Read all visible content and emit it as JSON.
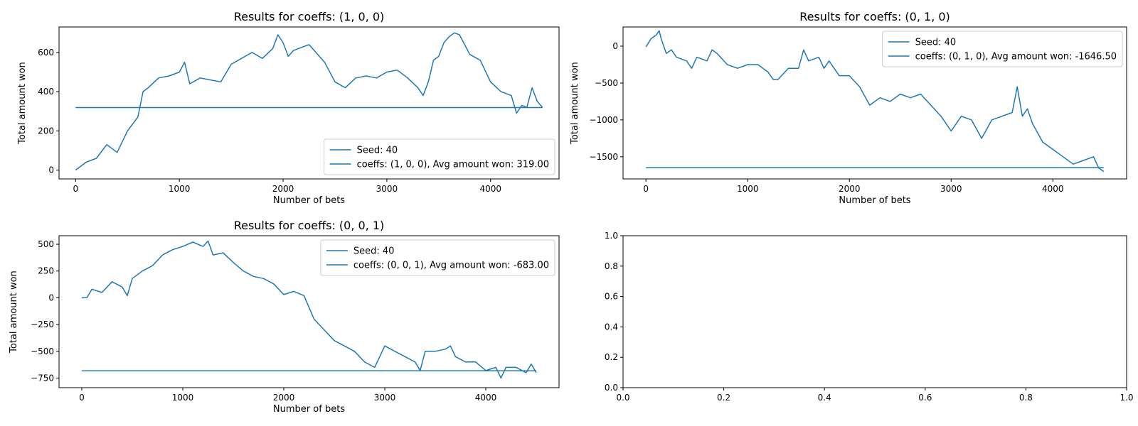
{
  "chart_data": [
    {
      "type": "line",
      "title": "Results for coeffs: (1, 0, 0)",
      "xlabel": "Number of bets",
      "ylabel": "Total amount won",
      "xlim": [
        -160,
        4660
      ],
      "ylim": [
        -45,
        730
      ],
      "xticks": [
        0,
        1000,
        2000,
        3000,
        4000
      ],
      "yticks": [
        0,
        200,
        400,
        600
      ],
      "legend_position": "lower right",
      "series": [
        {
          "name": "Seed: 40",
          "color": "#1f77b4",
          "x": [
            0,
            100,
            200,
            300,
            400,
            500,
            600,
            650,
            700,
            800,
            900,
            1000,
            1050,
            1100,
            1200,
            1300,
            1400,
            1500,
            1600,
            1700,
            1800,
            1900,
            1950,
            2000,
            2050,
            2100,
            2200,
            2250,
            2300,
            2400,
            2500,
            2600,
            2700,
            2800,
            2900,
            3000,
            3100,
            3200,
            3300,
            3350,
            3400,
            3450,
            3500,
            3550,
            3600,
            3650,
            3700,
            3750,
            3800,
            3900,
            4000,
            4100,
            4200,
            4250,
            4300,
            4350,
            4400,
            4450,
            4500
          ],
          "y": [
            0,
            40,
            60,
            130,
            90,
            200,
            270,
            400,
            420,
            470,
            480,
            500,
            550,
            440,
            470,
            460,
            450,
            540,
            570,
            600,
            570,
            620,
            690,
            650,
            580,
            610,
            630,
            640,
            610,
            550,
            450,
            420,
            470,
            480,
            470,
            500,
            510,
            470,
            420,
            380,
            450,
            560,
            580,
            650,
            680,
            700,
            690,
            640,
            590,
            560,
            450,
            400,
            380,
            290,
            330,
            320,
            420,
            350,
            320
          ]
        },
        {
          "name": "coeffs: (1, 0, 0), Avg amount won: 319.00",
          "color": "#1f77b4",
          "x": [
            0,
            4500
          ],
          "y": [
            319,
            319
          ]
        }
      ]
    },
    {
      "type": "line",
      "title": "Results for coeffs: (0, 1, 0)",
      "xlabel": "Number of bets",
      "ylabel": "Total amount won",
      "xlim": [
        -225,
        4725
      ],
      "ylim": [
        -1800,
        260
      ],
      "xticks": [
        0,
        1000,
        2000,
        3000,
        4000
      ],
      "yticks": [
        0,
        -500,
        -1000,
        -1500
      ],
      "legend_position": "upper right",
      "series": [
        {
          "name": "Seed: 40",
          "color": "#1f77b4",
          "x": [
            0,
            50,
            100,
            130,
            150,
            200,
            250,
            300,
            400,
            450,
            500,
            600,
            650,
            700,
            800,
            900,
            1000,
            1100,
            1200,
            1250,
            1300,
            1400,
            1500,
            1550,
            1600,
            1700,
            1750,
            1800,
            1900,
            2000,
            2100,
            2200,
            2300,
            2400,
            2500,
            2600,
            2700,
            2800,
            2900,
            3000,
            3100,
            3200,
            3300,
            3400,
            3500,
            3600,
            3650,
            3700,
            3750,
            3800,
            3900,
            4000,
            4100,
            4200,
            4300,
            4400,
            4450,
            4500
          ],
          "y": [
            -10,
            100,
            150,
            210,
            100,
            -100,
            -50,
            -150,
            -200,
            -300,
            -150,
            -200,
            -50,
            -100,
            -250,
            -300,
            -250,
            -250,
            -350,
            -450,
            -450,
            -300,
            -300,
            -50,
            -200,
            -150,
            -300,
            -200,
            -400,
            -400,
            -550,
            -800,
            -700,
            -750,
            -650,
            -700,
            -650,
            -800,
            -950,
            -1150,
            -950,
            -1000,
            -1250,
            -1000,
            -950,
            -900,
            -550,
            -950,
            -850,
            -1050,
            -1300,
            -1400,
            -1500,
            -1600,
            -1550,
            -1500,
            -1650,
            -1700
          ]
        },
        {
          "name": "coeffs: (0, 1, 0), Avg amount won: -1646.50",
          "color": "#1f77b4",
          "x": [
            0,
            4500
          ],
          "y": [
            -1646.5,
            -1646.5
          ]
        }
      ]
    },
    {
      "type": "line",
      "title": "Results for coeffs: (0, 0, 1)",
      "xlabel": "Number of bets",
      "ylabel": "Total amount won",
      "xlim": [
        -225,
        4725
      ],
      "ylim": [
        -840,
        580
      ],
      "xticks": [
        0,
        1000,
        2000,
        3000,
        4000
      ],
      "yticks": [
        500,
        250,
        0,
        -250,
        -500,
        -750
      ],
      "legend_position": "upper right",
      "series": [
        {
          "name": "Seed: 40",
          "color": "#1f77b4",
          "x": [
            0,
            50,
            100,
            200,
            300,
            400,
            450,
            500,
            600,
            700,
            800,
            900,
            1000,
            1100,
            1200,
            1250,
            1300,
            1400,
            1500,
            1600,
            1700,
            1800,
            1900,
            2000,
            2100,
            2200,
            2300,
            2400,
            2500,
            2600,
            2700,
            2800,
            2900,
            3000,
            3100,
            3200,
            3300,
            3350,
            3400,
            3500,
            3600,
            3650,
            3700,
            3800,
            3900,
            4000,
            4100,
            4150,
            4200,
            4300,
            4400,
            4450,
            4500
          ],
          "y": [
            0,
            0,
            80,
            50,
            150,
            100,
            20,
            180,
            250,
            300,
            400,
            450,
            480,
            520,
            480,
            530,
            400,
            420,
            330,
            250,
            200,
            180,
            130,
            30,
            60,
            20,
            -200,
            -300,
            -400,
            -450,
            -500,
            -600,
            -650,
            -450,
            -500,
            -550,
            -600,
            -680,
            -500,
            -500,
            -480,
            -450,
            -550,
            -600,
            -600,
            -680,
            -650,
            -750,
            -650,
            -650,
            -700,
            -620,
            -700
          ]
        },
        {
          "name": "coeffs: (0, 0, 1), Avg amount won: -683.00",
          "color": "#1f77b4",
          "x": [
            0,
            4500
          ],
          "y": [
            -683,
            -683
          ]
        }
      ]
    },
    {
      "type": "line",
      "title": "",
      "xlabel": "",
      "ylabel": "",
      "xlim": [
        0,
        1
      ],
      "ylim": [
        0,
        1
      ],
      "xticks": [
        0.0,
        0.2,
        0.4,
        0.6,
        0.8,
        1.0
      ],
      "yticks": [
        0.0,
        0.2,
        0.4,
        0.6,
        0.8,
        1.0
      ],
      "tick_format": "0.0",
      "series": []
    }
  ]
}
